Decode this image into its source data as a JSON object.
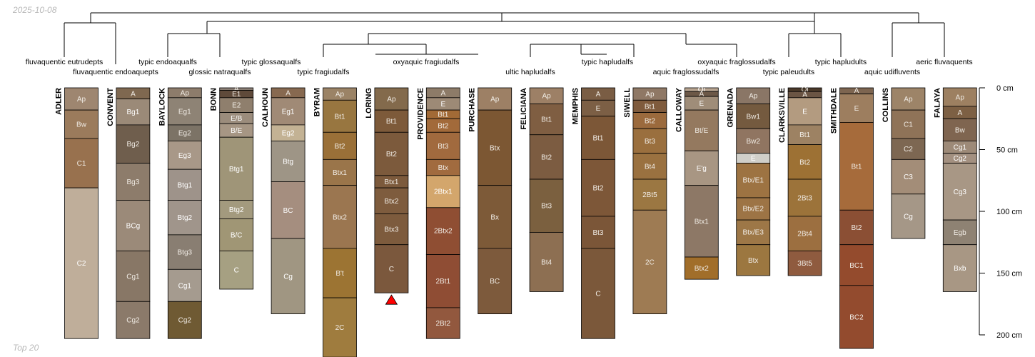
{
  "date": "2025-10-08",
  "footer": "Top 20",
  "colors": {
    "tree_line": "#000000",
    "warning": "#ff0000",
    "hz_border": "#000000"
  },
  "depth_axis": {
    "ticks": [
      0,
      50,
      100,
      150,
      200
    ],
    "unit": "cm"
  },
  "taxa": [
    {
      "name": "fluvaquentic eutrudepts",
      "profile": 0
    },
    {
      "name": "fluvaquentic endoaquepts",
      "profile": 1
    },
    {
      "name": "typic endoaqualfs",
      "profile": 2
    },
    {
      "name": "glossic natraqualfs",
      "profile": 3
    },
    {
      "name": "typic glossaqualfs",
      "profile": 4
    },
    {
      "name": "typic fragiudalfs",
      "profile": 5
    },
    {
      "name": "oxyaquic fragiudalfs",
      "profile": 7
    },
    {
      "name": "ultic hapludalfs",
      "profile": 9
    },
    {
      "name": "typic hapludalfs",
      "profile": 11
    },
    {
      "name": "aquic fraglossudalfs",
      "profile": 12
    },
    {
      "name": "oxyaquic fraglossudalfs",
      "profile": 13
    },
    {
      "name": "typic paleudults",
      "profile": 14
    },
    {
      "name": "typic hapludults",
      "profile": 15
    },
    {
      "name": "aquic udifluvents",
      "profile": 16
    },
    {
      "name": "aeric fluvaquents",
      "profile": 17
    }
  ],
  "profiles": [
    {
      "name": "ADLER",
      "warning": false,
      "horizons": [
        {
          "name": "Ap",
          "top": 0,
          "bottom": 18,
          "color": "#9e8670"
        },
        {
          "name": "Bw",
          "top": 18,
          "bottom": 41,
          "color": "#9b7b5c"
        },
        {
          "name": "C1",
          "top": 41,
          "bottom": 81,
          "color": "#98714e"
        },
        {
          "name": "C2",
          "top": 81,
          "bottom": 203,
          "color": "#bfae9a"
        }
      ]
    },
    {
      "name": "CONVENT",
      "warning": false,
      "horizons": [
        {
          "name": "A",
          "top": 0,
          "bottom": 9,
          "color": "#7f6850"
        },
        {
          "name": "Bg1",
          "top": 9,
          "bottom": 30,
          "color": "#9b8a78"
        },
        {
          "name": "Bg2",
          "top": 30,
          "bottom": 61,
          "color": "#6f5e4d"
        },
        {
          "name": "Bg3",
          "top": 61,
          "bottom": 91,
          "color": "#8d7c6b"
        },
        {
          "name": "BCg",
          "top": 91,
          "bottom": 132,
          "color": "#9b8a79"
        },
        {
          "name": "Cg1",
          "top": 132,
          "bottom": 173,
          "color": "#887766"
        },
        {
          "name": "Cg2",
          "top": 173,
          "bottom": 203,
          "color": "#8b7a6a"
        }
      ]
    },
    {
      "name": "BAYLOCK",
      "warning": false,
      "horizons": [
        {
          "name": "Ap",
          "top": 0,
          "bottom": 8,
          "color": "#8d7c6b"
        },
        {
          "name": "Eg1",
          "top": 8,
          "bottom": 30,
          "color": "#8e8375"
        },
        {
          "name": "Eg2",
          "top": 30,
          "bottom": 43,
          "color": "#7c7366"
        },
        {
          "name": "Eg3",
          "top": 43,
          "bottom": 66,
          "color": "#a89888"
        },
        {
          "name": "Btg1",
          "top": 66,
          "bottom": 91,
          "color": "#9e938a"
        },
        {
          "name": "Btg2",
          "top": 91,
          "bottom": 119,
          "color": "#a0958b"
        },
        {
          "name": "Btg3",
          "top": 119,
          "bottom": 147,
          "color": "#897e72"
        },
        {
          "name": "Cg1",
          "top": 147,
          "bottom": 173,
          "color": "#a59b8f"
        },
        {
          "name": "Cg2",
          "top": 173,
          "bottom": 203,
          "color": "#6f5a33"
        }
      ]
    },
    {
      "name": "BONN",
      "warning": false,
      "horizons": [
        {
          "name": "A",
          "top": 0,
          "bottom": 2,
          "color": "#8a7e74"
        },
        {
          "name": "E1",
          "top": 2,
          "bottom": 8,
          "color": "#5f4a3a"
        },
        {
          "name": "E2",
          "top": 8,
          "bottom": 20,
          "color": "#8f7f6d"
        },
        {
          "name": "E/B",
          "top": 20,
          "bottom": 29,
          "color": "#9b8c7c"
        },
        {
          "name": "B/E",
          "top": 29,
          "bottom": 40,
          "color": "#a69684"
        },
        {
          "name": "Btg1",
          "top": 40,
          "bottom": 91,
          "color": "#9f9578"
        },
        {
          "name": "Btg2",
          "top": 91,
          "bottom": 106,
          "color": "#a39a7e"
        },
        {
          "name": "B/C",
          "top": 106,
          "bottom": 132,
          "color": "#a09675"
        },
        {
          "name": "C",
          "top": 132,
          "bottom": 163,
          "color": "#a6a082"
        }
      ]
    },
    {
      "name": "CALHOUN",
      "warning": false,
      "horizons": [
        {
          "name": "A",
          "top": 0,
          "bottom": 8,
          "color": "#876950"
        },
        {
          "name": "Eg1",
          "top": 8,
          "bottom": 30,
          "color": "#a08a76"
        },
        {
          "name": "Eg2",
          "top": 30,
          "bottom": 43,
          "color": "#c3b294"
        },
        {
          "name": "Btg",
          "top": 43,
          "bottom": 76,
          "color": "#9e9586"
        },
        {
          "name": "BC",
          "top": 76,
          "bottom": 122,
          "color": "#a58e7f"
        },
        {
          "name": "Cg",
          "top": 122,
          "bottom": 183,
          "color": "#a09682"
        }
      ]
    },
    {
      "name": "BYRAM",
      "warning": false,
      "horizons": [
        {
          "name": "Ap",
          "top": 0,
          "bottom": 10,
          "color": "#9b8366"
        },
        {
          "name": "Bt1",
          "top": 10,
          "bottom": 36,
          "color": "#987640"
        },
        {
          "name": "Bt2",
          "top": 36,
          "bottom": 58,
          "color": "#9a7038"
        },
        {
          "name": "Btx1",
          "top": 58,
          "bottom": 79,
          "color": "#9a754a"
        },
        {
          "name": "Btx2",
          "top": 79,
          "bottom": 130,
          "color": "#9b7650"
        },
        {
          "name": "B't",
          "top": 130,
          "bottom": 170,
          "color": "#9c7433"
        },
        {
          "name": "2C",
          "top": 170,
          "bottom": 218,
          "color": "#9f7c3e"
        }
      ]
    },
    {
      "name": "LORING",
      "warning": true,
      "horizons": [
        {
          "name": "Ap",
          "top": 0,
          "bottom": 18,
          "color": "#836a4c"
        },
        {
          "name": "Bt1",
          "top": 18,
          "bottom": 36,
          "color": "#7d5a3a"
        },
        {
          "name": "Bt2",
          "top": 36,
          "bottom": 71,
          "color": "#7c5a3c"
        },
        {
          "name": "Btx1",
          "top": 71,
          "bottom": 81,
          "color": "#7c5a3c"
        },
        {
          "name": "Btx2",
          "top": 81,
          "bottom": 102,
          "color": "#7e5c3e"
        },
        {
          "name": "Btx3",
          "top": 102,
          "bottom": 127,
          "color": "#7d5b3d"
        },
        {
          "name": "C",
          "top": 127,
          "bottom": 166,
          "color": "#7b583d"
        }
      ]
    },
    {
      "name": "PROVIDENCE",
      "warning": false,
      "horizons": [
        {
          "name": "A",
          "top": 0,
          "bottom": 8,
          "color": "#8d7b68"
        },
        {
          "name": "E",
          "top": 8,
          "bottom": 18,
          "color": "#9d8a76"
        },
        {
          "name": "Bt1",
          "top": 18,
          "bottom": 25,
          "color": "#a26a36"
        },
        {
          "name": "Bt2",
          "top": 25,
          "bottom": 36,
          "color": "#a26a3a"
        },
        {
          "name": "Bt3",
          "top": 36,
          "bottom": 58,
          "color": "#a16a3e"
        },
        {
          "name": "Btx",
          "top": 58,
          "bottom": 71,
          "color": "#a16b3f"
        },
        {
          "name": "2Btx1",
          "top": 71,
          "bottom": 97,
          "color": "#d3a66c"
        },
        {
          "name": "2Btx2",
          "top": 97,
          "bottom": 135,
          "color": "#8f4e33"
        },
        {
          "name": "2Bt1",
          "top": 135,
          "bottom": 178,
          "color": "#8f4d34"
        },
        {
          "name": "2Bt2",
          "top": 178,
          "bottom": 203,
          "color": "#92583e"
        }
      ]
    },
    {
      "name": "PURCHASE",
      "warning": false,
      "horizons": [
        {
          "name": "Ap",
          "top": 0,
          "bottom": 18,
          "color": "#9d8065"
        },
        {
          "name": "Btx",
          "top": 18,
          "bottom": 79,
          "color": "#7c5733"
        },
        {
          "name": "Bx",
          "top": 79,
          "bottom": 130,
          "color": "#7d5a38"
        },
        {
          "name": "BC",
          "top": 130,
          "bottom": 183,
          "color": "#7d5a3c"
        }
      ]
    },
    {
      "name": "FELICIANA",
      "warning": false,
      "horizons": [
        {
          "name": "Ap",
          "top": 0,
          "bottom": 13,
          "color": "#9d8066"
        },
        {
          "name": "Bt1",
          "top": 13,
          "bottom": 38,
          "color": "#7f5e42"
        },
        {
          "name": "Bt2",
          "top": 38,
          "bottom": 74,
          "color": "#7c5c41"
        },
        {
          "name": "Bt3",
          "top": 74,
          "bottom": 117,
          "color": "#7b603f"
        },
        {
          "name": "Bt4",
          "top": 117,
          "bottom": 165,
          "color": "#8d6f52"
        }
      ]
    },
    {
      "name": "MEMPHIS",
      "warning": false,
      "horizons": [
        {
          "name": "A",
          "top": 0,
          "bottom": 10,
          "color": "#7a5d44"
        },
        {
          "name": "E",
          "top": 10,
          "bottom": 23,
          "color": "#7c5f45"
        },
        {
          "name": "Bt1",
          "top": 23,
          "bottom": 58,
          "color": "#7c5737"
        },
        {
          "name": "Bt2",
          "top": 58,
          "bottom": 104,
          "color": "#7d5738"
        },
        {
          "name": "Bt3",
          "top": 104,
          "bottom": 130,
          "color": "#7b5638"
        },
        {
          "name": "C",
          "top": 130,
          "bottom": 203,
          "color": "#7b583a"
        }
      ]
    },
    {
      "name": "SIWELL",
      "warning": false,
      "horizons": [
        {
          "name": "Ap",
          "top": 0,
          "bottom": 10,
          "color": "#8f7865"
        },
        {
          "name": "Bt1",
          "top": 10,
          "bottom": 20,
          "color": "#7f5b3d"
        },
        {
          "name": "Bt2",
          "top": 20,
          "bottom": 33,
          "color": "#9b6a3d"
        },
        {
          "name": "Bt3",
          "top": 33,
          "bottom": 53,
          "color": "#9a6f3e"
        },
        {
          "name": "Bt4",
          "top": 53,
          "bottom": 74,
          "color": "#9a7140"
        },
        {
          "name": "2Bt5",
          "top": 74,
          "bottom": 99,
          "color": "#9b7742"
        },
        {
          "name": "2C",
          "top": 99,
          "bottom": 183,
          "color": "#9e7b53"
        }
      ]
    },
    {
      "name": "CALLOWAY",
      "warning": false,
      "horizons": [
        {
          "name": "Oi",
          "top": 0,
          "bottom": 3,
          "color": "#b8a490"
        },
        {
          "name": "A",
          "top": 3,
          "bottom": 7,
          "color": "#6c5847"
        },
        {
          "name": "E",
          "top": 7,
          "bottom": 18,
          "color": "#9f8d79"
        },
        {
          "name": "Bt/E",
          "top": 18,
          "bottom": 51,
          "color": "#94795f"
        },
        {
          "name": "E'g",
          "top": 51,
          "bottom": 79,
          "color": "#a89683"
        },
        {
          "name": "Btx1",
          "top": 79,
          "bottom": 137,
          "color": "#8d7866"
        },
        {
          "name": "Btx2",
          "top": 137,
          "bottom": 155,
          "color": "#a16e2a"
        }
      ]
    },
    {
      "name": "GRENADA",
      "warning": false,
      "horizons": [
        {
          "name": "Ap",
          "top": 0,
          "bottom": 13,
          "color": "#8a7666"
        },
        {
          "name": "Bw1",
          "top": 13,
          "bottom": 33,
          "color": "#745a3f"
        },
        {
          "name": "Bw2",
          "top": 33,
          "bottom": 53,
          "color": "#907561"
        },
        {
          "name": "E",
          "top": 53,
          "bottom": 61,
          "color": "#d0cfc9"
        },
        {
          "name": "Btx/E1",
          "top": 61,
          "bottom": 89,
          "color": "#9d7342"
        },
        {
          "name": "Btx/E2",
          "top": 89,
          "bottom": 107,
          "color": "#9d7445"
        },
        {
          "name": "Btx/E3",
          "top": 107,
          "bottom": 127,
          "color": "#9d7747"
        },
        {
          "name": "Btx",
          "top": 127,
          "bottom": 152,
          "color": "#9c7740"
        }
      ]
    },
    {
      "name": "CLARKSVILLE",
      "warning": false,
      "horizons": [
        {
          "name": "Oi",
          "top": 0,
          "bottom": 3,
          "color": "#4b3a2a"
        },
        {
          "name": "A",
          "top": 3,
          "bottom": 8,
          "color": "#6b5544"
        },
        {
          "name": "E",
          "top": 8,
          "bottom": 30,
          "color": "#b39b80"
        },
        {
          "name": "Bt1",
          "top": 30,
          "bottom": 46,
          "color": "#9d8263"
        },
        {
          "name": "Bt2",
          "top": 46,
          "bottom": 74,
          "color": "#9d7134"
        },
        {
          "name": "2Bt3",
          "top": 74,
          "bottom": 104,
          "color": "#9c733a"
        },
        {
          "name": "2Bt4",
          "top": 104,
          "bottom": 132,
          "color": "#9c6f40"
        },
        {
          "name": "3Bt5",
          "top": 132,
          "bottom": 152,
          "color": "#8f5b3f"
        }
      ]
    },
    {
      "name": "SMITHDALE",
      "warning": false,
      "horizons": [
        {
          "name": "A",
          "top": 0,
          "bottom": 5,
          "color": "#7d6550"
        },
        {
          "name": "E",
          "top": 5,
          "bottom": 28,
          "color": "#9d7e5f"
        },
        {
          "name": "Bt1",
          "top": 28,
          "bottom": 99,
          "color": "#a66b3b"
        },
        {
          "name": "Bt2",
          "top": 99,
          "bottom": 127,
          "color": "#8b4f34"
        },
        {
          "name": "BC1",
          "top": 127,
          "bottom": 160,
          "color": "#944b2d"
        },
        {
          "name": "BC2",
          "top": 160,
          "bottom": 211,
          "color": "#934b2e"
        }
      ]
    },
    {
      "name": "COLLINS",
      "warning": false,
      "horizons": [
        {
          "name": "Ap",
          "top": 0,
          "bottom": 18,
          "color": "#9d8468"
        },
        {
          "name": "C1",
          "top": 18,
          "bottom": 41,
          "color": "#8f7358"
        },
        {
          "name": "C2",
          "top": 41,
          "bottom": 58,
          "color": "#7d6752"
        },
        {
          "name": "C3",
          "top": 58,
          "bottom": 86,
          "color": "#a38d78"
        },
        {
          "name": "Cg",
          "top": 86,
          "bottom": 122,
          "color": "#a59787"
        }
      ]
    },
    {
      "name": "FALAYA",
      "warning": false,
      "horizons": [
        {
          "name": "Ap",
          "top": 0,
          "bottom": 15,
          "color": "#9d8061"
        },
        {
          "name": "A",
          "top": 15,
          "bottom": 25,
          "color": "#7d6044"
        },
        {
          "name": "Bw",
          "top": 25,
          "bottom": 43,
          "color": "#7f6550"
        },
        {
          "name": "Cg1",
          "top": 43,
          "bottom": 53,
          "color": "#9d8a78"
        },
        {
          "name": "Cg2",
          "top": 53,
          "bottom": 61,
          "color": "#a39080"
        },
        {
          "name": "Cg3",
          "top": 61,
          "bottom": 107,
          "color": "#a89785"
        },
        {
          "name": "Egb",
          "top": 107,
          "bottom": 127,
          "color": "#8e8273"
        },
        {
          "name": "Bxb",
          "top": 127,
          "bottom": 165,
          "color": "#a89784"
        }
      ]
    }
  ],
  "tree": {
    "link": [
      [
        11,
        12,
        0.9
      ],
      [
        14,
        15,
        0.9
      ],
      [
        7,
        8,
        0.9
      ],
      [
        10,
        11,
        0.9
      ],
      [
        9,
        10,
        0.9
      ],
      [
        0,
        1,
        1.0
      ],
      [
        2,
        3,
        1.0
      ],
      [
        13,
        14,
        1.0
      ],
      [
        16,
        17,
        1.0
      ],
      [
        6,
        7,
        1.5
      ],
      [
        12,
        13,
        1.5
      ],
      [
        4,
        5,
        1.5
      ],
      [
        9,
        12,
        1.5
      ],
      [
        6,
        9,
        2.2
      ],
      [
        4,
        6,
        2.8
      ],
      [
        2,
        4,
        3.0
      ],
      [
        13,
        16,
        3.0
      ],
      [
        0,
        2,
        3.5
      ],
      [
        0,
        13,
        4.0
      ]
    ]
  }
}
